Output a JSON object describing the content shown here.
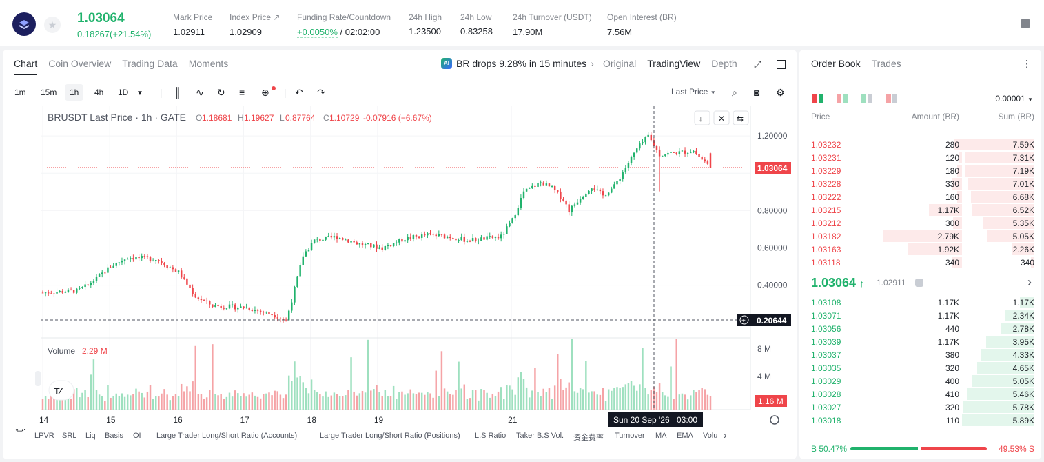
{
  "header": {
    "last_price": "1.03064",
    "change": "0.18267(+21.54%)",
    "stats": [
      {
        "label": "Mark Price",
        "value": "1.02911"
      },
      {
        "label": "Index Price ↗",
        "value": "1.02909"
      },
      {
        "label": "Funding Rate/Countdown",
        "value": "+0.0050%",
        "value2": " / 02:02:00"
      },
      {
        "label": "24h High",
        "value": "1.23500"
      },
      {
        "label": "24h Low",
        "value": "0.83258"
      },
      {
        "label": "24h Turnover (USDT)",
        "value": "17.90M"
      },
      {
        "label": "Open Interest (BR)",
        "value": "7.56M"
      }
    ]
  },
  "chart_panel": {
    "tabs": [
      "Chart",
      "Coin Overview",
      "Trading Data",
      "Moments"
    ],
    "news": "BR drops 9.28% in 15 minutes",
    "news_badge": "AI",
    "views": [
      "Original",
      "TradingView",
      "Depth"
    ],
    "timeframes": [
      "1m",
      "15m",
      "1h",
      "4h",
      "1D"
    ],
    "active_timeframe": "1h",
    "price_source": "Last Price"
  },
  "chart_legend": {
    "symbol": "BRUSDT Last Price · 1h · GATE",
    "o_label": "O",
    "o": "1.18681",
    "h_label": "H",
    "h": "1.19627",
    "l_label": "L",
    "l": "0.87764",
    "c_label": "C",
    "c": "1.10729",
    "change": "-0.07916 (−6.67%)",
    "volume_label": "Volume",
    "volume": "2.29 M",
    "last_price_tag": "1.03064",
    "crosshair_price": "0.20644",
    "volume_tag": "1.16 M",
    "crosshair_time": "Sun 20 Sep '26",
    "crosshair_hour": "03:00"
  },
  "chart_data": {
    "type": "candlestick",
    "x_ticks": [
      "14",
      "15",
      "16",
      "17",
      "18",
      "19",
      "21"
    ],
    "y_ticks": [
      "1.20000",
      "0.80000",
      "0.60000",
      "0.40000"
    ],
    "vol_ticks": [
      "8 M",
      "4 M"
    ],
    "ylim": [
      0.16,
      1.26
    ],
    "vol_max": 10,
    "day_index": [
      0,
      24,
      48,
      72,
      96,
      120,
      168
    ],
    "candles": []
  },
  "indicators": [
    "LPVR",
    "SRL",
    "Liq",
    "Basis",
    "OI",
    "Large Trader Long/Short Ratio (Accounts)",
    "Large Trader Long/Short Ratio (Positions)",
    "L.S Ratio",
    "Taker B.S Vol.",
    "资金费率",
    "Turnover",
    "MA",
    "EMA",
    "Volu"
  ],
  "order_book": {
    "tabs": [
      "Order Book",
      "Trades"
    ],
    "precision": "0.00001",
    "columns": [
      "Price",
      "Amount (BR)",
      "Sum (BR)"
    ],
    "asks": [
      {
        "price": "1.03232",
        "amount": "280",
        "sum": "7.59K",
        "depth": 1.0,
        "amt_depth": 0.1
      },
      {
        "price": "1.03231",
        "amount": "120",
        "sum": "7.31K",
        "depth": 0.96,
        "amt_depth": 0.04
      },
      {
        "price": "1.03229",
        "amount": "180",
        "sum": "7.19K",
        "depth": 0.95,
        "amt_depth": 0.06
      },
      {
        "price": "1.03228",
        "amount": "330",
        "sum": "7.01K",
        "depth": 0.92,
        "amt_depth": 0.12
      },
      {
        "price": "1.03222",
        "amount": "160",
        "sum": "6.68K",
        "depth": 0.88,
        "amt_depth": 0.06
      },
      {
        "price": "1.03215",
        "amount": "1.17K",
        "sum": "6.52K",
        "depth": 0.86,
        "amt_depth": 0.42
      },
      {
        "price": "1.03212",
        "amount": "300",
        "sum": "5.35K",
        "depth": 0.7,
        "amt_depth": 0.11
      },
      {
        "price": "1.03182",
        "amount": "2.79K",
        "sum": "5.05K",
        "depth": 0.66,
        "amt_depth": 1.0
      },
      {
        "price": "1.03163",
        "amount": "1.92K",
        "sum": "2.26K",
        "depth": 0.3,
        "amt_depth": 0.69
      },
      {
        "price": "1.03118",
        "amount": "340",
        "sum": "340",
        "depth": 0.05,
        "amt_depth": 0.12
      }
    ],
    "mid_price": "1.03064",
    "mid_arrow": "↑",
    "mark_price": "1.02911",
    "bids": [
      {
        "price": "1.03108",
        "amount": "1.17K",
        "sum": "1.17K",
        "depth": 0.2
      },
      {
        "price": "1.03071",
        "amount": "1.17K",
        "sum": "2.34K",
        "depth": 0.4
      },
      {
        "price": "1.03056",
        "amount": "440",
        "sum": "2.78K",
        "depth": 0.47
      },
      {
        "price": "1.03039",
        "amount": "1.17K",
        "sum": "3.95K",
        "depth": 0.67
      },
      {
        "price": "1.03037",
        "amount": "380",
        "sum": "4.33K",
        "depth": 0.74
      },
      {
        "price": "1.03035",
        "amount": "320",
        "sum": "4.65K",
        "depth": 0.79
      },
      {
        "price": "1.03029",
        "amount": "400",
        "sum": "5.05K",
        "depth": 0.86
      },
      {
        "price": "1.03028",
        "amount": "410",
        "sum": "5.46K",
        "depth": 0.93
      },
      {
        "price": "1.03027",
        "amount": "320",
        "sum": "5.78K",
        "depth": 0.98
      },
      {
        "price": "1.03018",
        "amount": "110",
        "sum": "5.89K",
        "depth": 1.0
      }
    ],
    "buy_ratio": "B 50.47%",
    "sell_ratio": "49.53% S",
    "buy_fraction": 0.5047
  },
  "colors": {
    "up": "#20b26c",
    "down": "#ef454a",
    "up_vol": "#9ee0bf",
    "down_vol": "#f5a3a6"
  }
}
